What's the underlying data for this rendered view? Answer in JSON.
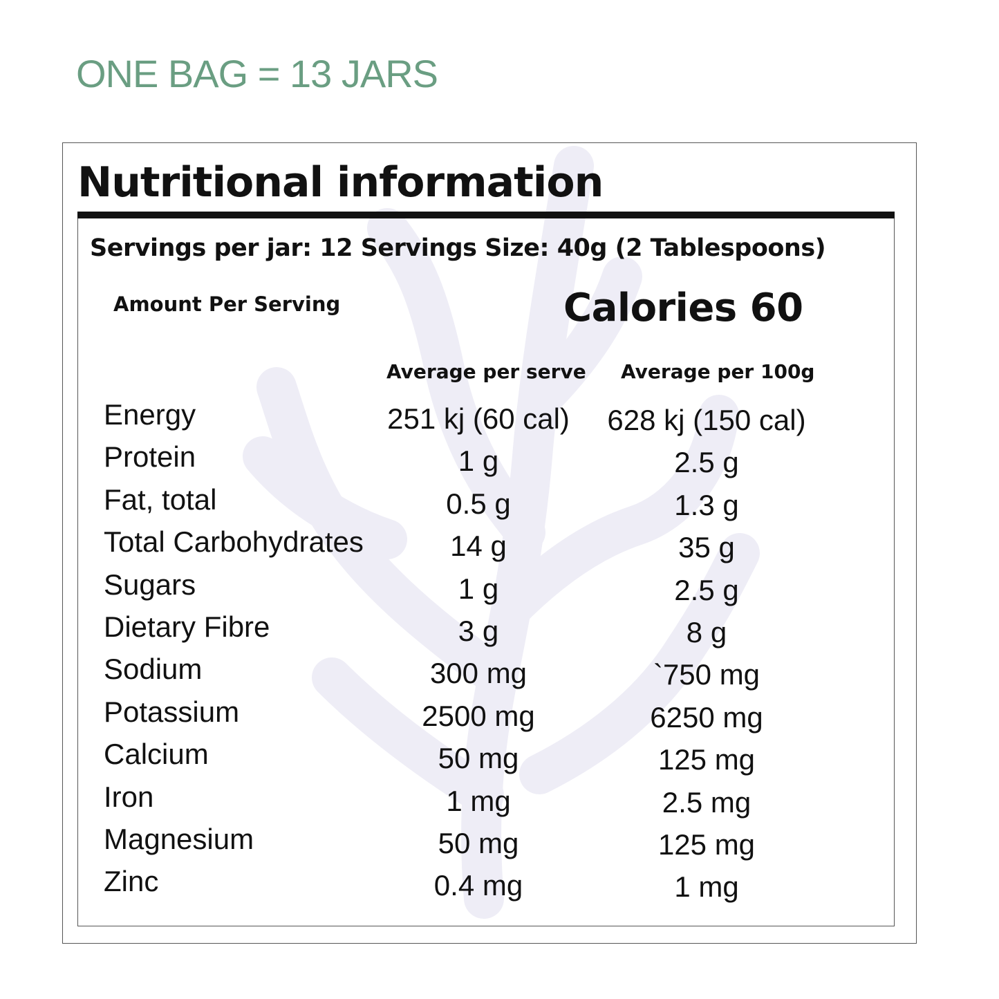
{
  "colors": {
    "headline": "#6a9e82",
    "text": "#111111",
    "frame": "#555555",
    "watermark": "#eeedf6"
  },
  "headline": "ONE BAG = 13 JARS",
  "label": {
    "title": "Nutritional information",
    "servings_line": "Servings per jar: 12 Servings Size: 40g (2 Tablespoons)",
    "amount_per_serving": "Amount Per Serving",
    "calories": "Calories 60",
    "watermark_icon": "seaweed-icon",
    "columns": {
      "per_serve": "Average per serve",
      "per_100g": "Average per 100g"
    },
    "rows": [
      {
        "name": "Energy",
        "per_serve": "251 kj (60 cal)",
        "per_100g": "628 kj (150 cal)"
      },
      {
        "name": "Protein",
        "per_serve": "1 g",
        "per_100g": "2.5 g"
      },
      {
        "name": "Fat, total",
        "per_serve": "0.5 g",
        "per_100g": "1.3 g"
      },
      {
        "name": "Total Carbohydrates",
        "per_serve": "14 g",
        "per_100g": "35 g"
      },
      {
        "name": "Sugars",
        "per_serve": "1 g",
        "per_100g": "2.5 g"
      },
      {
        "name": "Dietary Fibre",
        "per_serve": "3 g",
        "per_100g": "8 g"
      },
      {
        "name": "Sodium",
        "per_serve": "300 mg",
        "per_100g": "`750 mg"
      },
      {
        "name": "Potassium",
        "per_serve": "2500 mg",
        "per_100g": "6250 mg"
      },
      {
        "name": "Calcium",
        "per_serve": "50 mg",
        "per_100g": "125 mg"
      },
      {
        "name": "Iron",
        "per_serve": "1 mg",
        "per_100g": "2.5 mg"
      },
      {
        "name": "Magnesium",
        "per_serve": "50 mg",
        "per_100g": "125 mg"
      },
      {
        "name": "Zinc",
        "per_serve": "0.4 mg",
        "per_100g": "1 mg"
      }
    ]
  }
}
